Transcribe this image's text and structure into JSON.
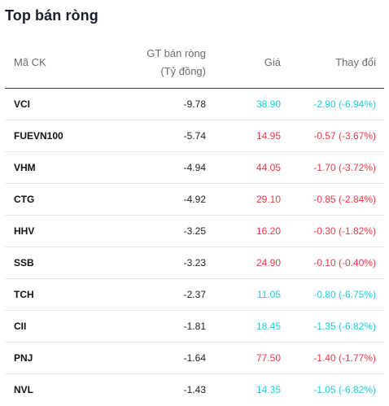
{
  "title": "Top bán ròng",
  "columns": {
    "code": "Mã CK",
    "value_line1": "GT bán ròng",
    "value_line2": "(Tỷ đồng)",
    "price": "Giá",
    "change": "Thay đổi"
  },
  "colors": {
    "cyan": "#1ecde0",
    "red": "#f23645"
  },
  "rows": [
    {
      "code": "VCI",
      "value": "-9.78",
      "price": "38.90",
      "change": "-2.90 (-6.94%)",
      "tone": "cyan"
    },
    {
      "code": "FUEVN100",
      "value": "-5.74",
      "price": "14.95",
      "change": "-0.57 (-3.67%)",
      "tone": "red"
    },
    {
      "code": "VHM",
      "value": "-4.94",
      "price": "44.05",
      "change": "-1.70 (-3.72%)",
      "tone": "red"
    },
    {
      "code": "CTG",
      "value": "-4.92",
      "price": "29.10",
      "change": "-0.85 (-2.84%)",
      "tone": "red"
    },
    {
      "code": "HHV",
      "value": "-3.25",
      "price": "16.20",
      "change": "-0.30 (-1.82%)",
      "tone": "red"
    },
    {
      "code": "SSB",
      "value": "-3.23",
      "price": "24.90",
      "change": "-0.10 (-0.40%)",
      "tone": "red"
    },
    {
      "code": "TCH",
      "value": "-2.37",
      "price": "11.05",
      "change": "-0.80 (-6.75%)",
      "tone": "cyan"
    },
    {
      "code": "CII",
      "value": "-1.81",
      "price": "18.45",
      "change": "-1.35 (-6.82%)",
      "tone": "cyan"
    },
    {
      "code": "PNJ",
      "value": "-1.64",
      "price": "77.50",
      "change": "-1.40 (-1.77%)",
      "tone": "red"
    },
    {
      "code": "NVL",
      "value": "-1.43",
      "price": "14.35",
      "change": "-1.05 (-6.82%)",
      "tone": "cyan"
    }
  ]
}
